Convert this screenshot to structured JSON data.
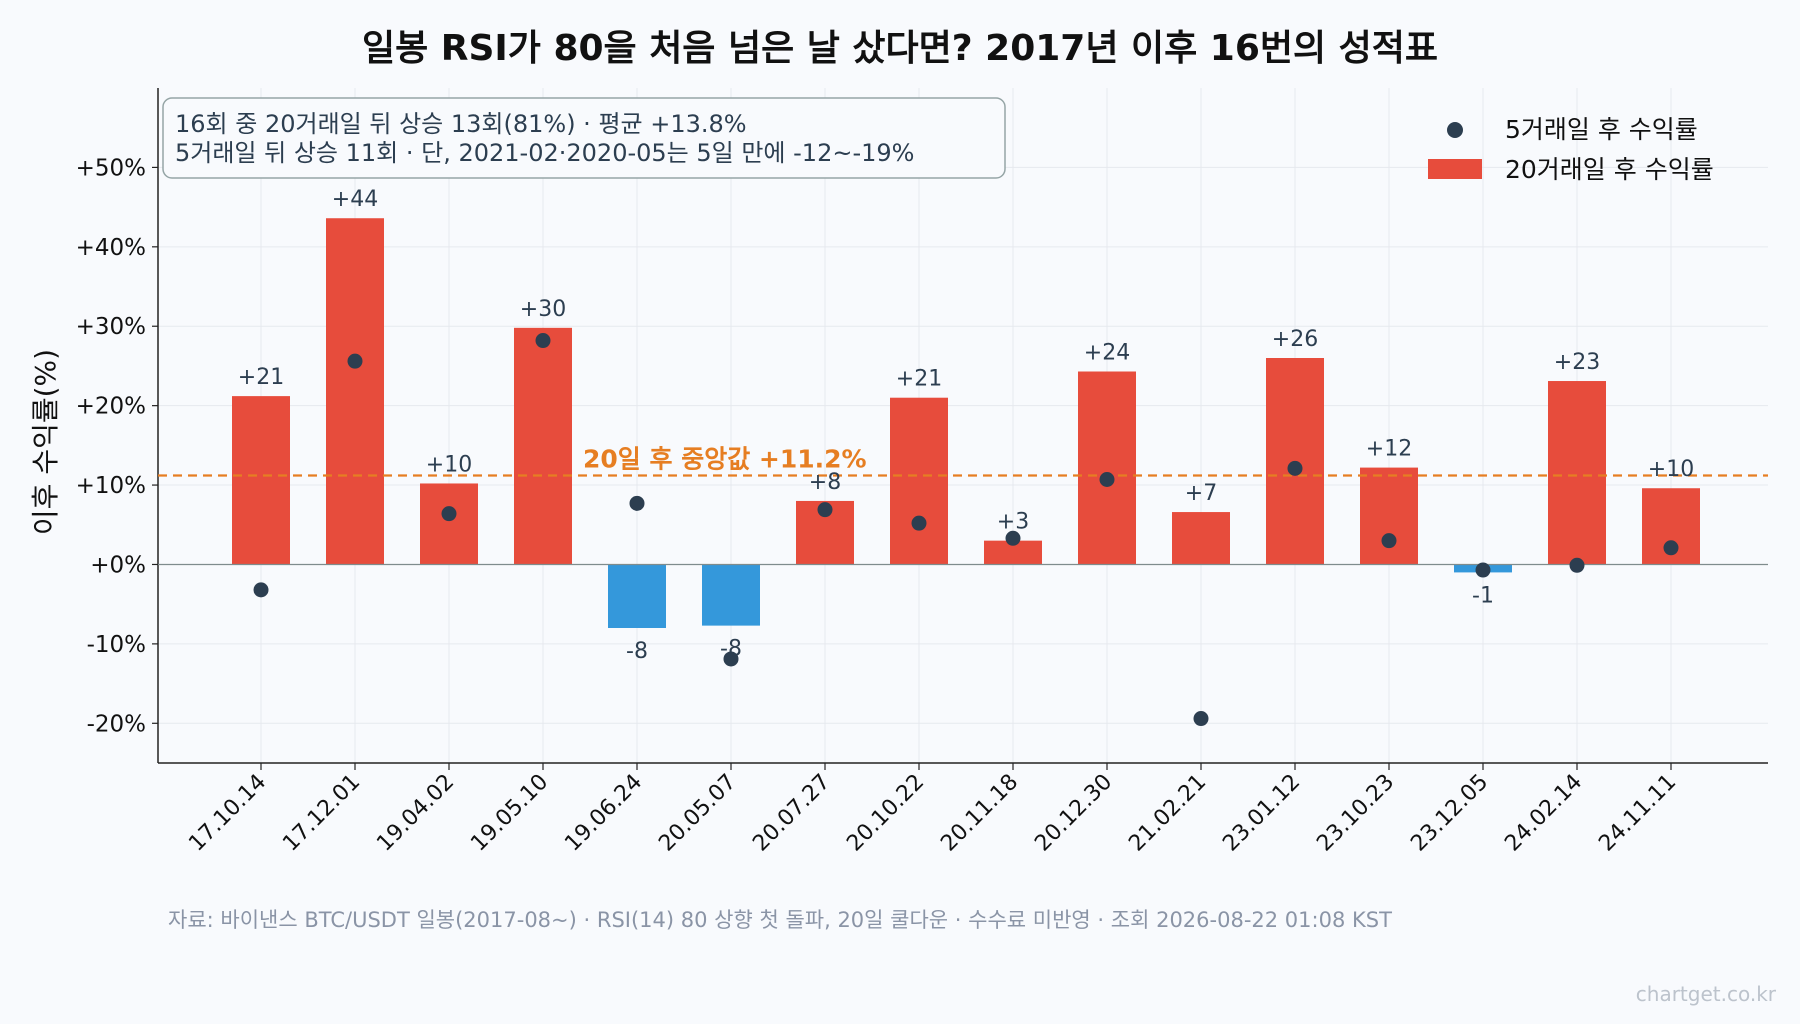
{
  "chart_data": {
    "type": "bar",
    "title": "일봉 RSI가 80을 처음 넘은 날 샀다면? 2017년 이후 16번의 성적표",
    "ylabel": "이후 수익률(%)",
    "xlabel": "",
    "categories": [
      "17.10.14",
      "17.12.01",
      "19.04.02",
      "19.05.10",
      "19.06.24",
      "20.05.07",
      "20.07.27",
      "20.10.22",
      "20.11.18",
      "20.12.30",
      "21.02.21",
      "23.01.12",
      "23.10.23",
      "23.12.05",
      "24.02.14",
      "24.11.11"
    ],
    "series": [
      {
        "name": "20거래일 후 수익률",
        "kind": "bar",
        "values": [
          21.2,
          43.6,
          10.2,
          29.8,
          -8.0,
          -7.7,
          8.0,
          21.0,
          3.0,
          24.3,
          6.6,
          26.0,
          12.2,
          -1.0,
          23.1,
          9.6
        ],
        "labels": [
          "+21",
          "+44",
          "+10",
          "+30",
          "-8",
          "-8",
          "+8",
          "+21",
          "+3",
          "+24",
          "+7",
          "+26",
          "+12",
          "-1",
          "+23",
          "+10"
        ]
      },
      {
        "name": "5거래일 후 수익률",
        "kind": "scatter",
        "values": [
          -3.2,
          25.6,
          6.4,
          28.2,
          7.7,
          -11.9,
          6.9,
          5.2,
          3.3,
          10.7,
          -19.4,
          12.1,
          3.0,
          -0.7,
          -0.1,
          2.1
        ]
      }
    ],
    "ylim": [
      -25,
      60
    ],
    "yticks": [
      -20,
      -10,
      0,
      10,
      20,
      30,
      40,
      50
    ],
    "ytick_labels": [
      "-20%",
      "-10%",
      "+0%",
      "+10%",
      "+20%",
      "+30%",
      "+40%",
      "+50%"
    ],
    "median_line": {
      "value": 11.2,
      "label": "20일 후 중앙값 +11.2%"
    },
    "annotation": {
      "line1": "16회 중 20거래일 뒤 상승 13회(81%) · 평균 +13.8%",
      "line2": "5거래일 뒤 상승 11회 · 단, 2021-02·2020-05는 5일 만에 -12~-19%"
    },
    "legend_position": "top-right",
    "grid": true,
    "source": "자료: 바이낸스 BTC/USDT 일봉(2017-08~) · RSI(14) 80 상향 첫 돌파, 20일 쿨다운 · 수수료 미반영 · 조회 2026-08-22 01:08 KST",
    "watermark": "chartget.co.kr",
    "colors": {
      "positive": "#e74c3c",
      "negative": "#3498db",
      "dot": "#2c3e50",
      "median": "#e67e22",
      "label": "#2c3e50"
    }
  }
}
